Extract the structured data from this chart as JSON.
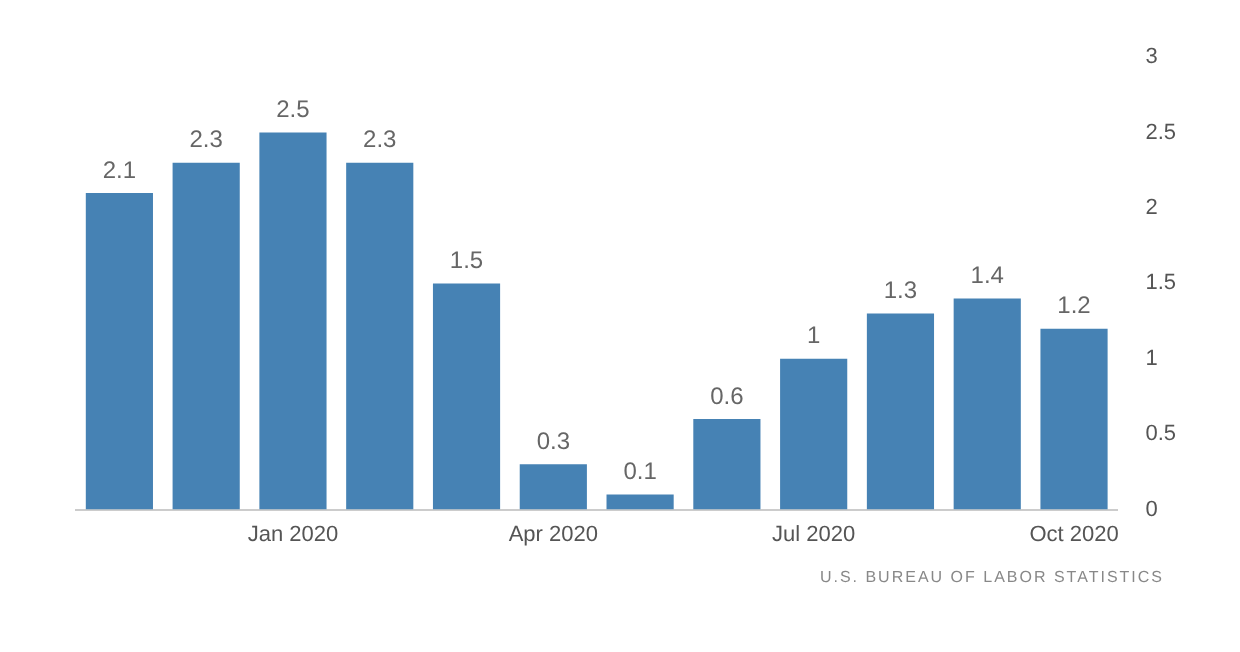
{
  "chart_data": {
    "type": "bar",
    "categories": [
      null,
      null,
      "Jan 2020",
      null,
      null,
      "Apr 2020",
      null,
      null,
      "Jul 2020",
      null,
      null,
      "Oct 2020"
    ],
    "values": [
      2.1,
      2.3,
      2.5,
      2.3,
      1.5,
      0.3,
      0.1,
      0.6,
      1,
      1.3,
      1.4,
      1.2
    ],
    "color": "#4682b4",
    "ylim": [
      0,
      3
    ],
    "yticks": [
      0,
      0.5,
      1,
      1.5,
      2,
      2.5,
      3
    ],
    "data_labels": true,
    "grid": false,
    "legend": false,
    "annotations": [
      "U.S. BUREAU OF LABOR STATISTICS"
    ]
  }
}
